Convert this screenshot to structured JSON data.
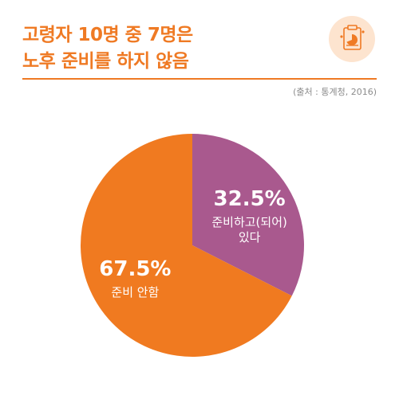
{
  "title": {
    "line1": "고령자 10명 중 7명은",
    "line2": "노후 준비를 하지 않음"
  },
  "source": "(출처 : 통계청, 2016)",
  "icon": "report-chart-icon",
  "colors": {
    "accent": "#ef7a24",
    "prepared": "#a9598e",
    "not_prepared": "#f07a20",
    "badge_bg": "#fde4cf"
  },
  "chart_data": {
    "type": "pie",
    "title": "고령자 10명 중 7명은 노후 준비를 하지 않음",
    "slices": [
      {
        "label": "준비하고(되어) 있다",
        "label_lines": [
          "준비하고(되어)",
          "있다"
        ],
        "value": 32.5,
        "value_text": "32.5%",
        "color": "#a9598e"
      },
      {
        "label": "준비 안함",
        "label_lines": [
          "준비 안함"
        ],
        "value": 67.5,
        "value_text": "67.5%",
        "color": "#f07a20"
      }
    ]
  }
}
